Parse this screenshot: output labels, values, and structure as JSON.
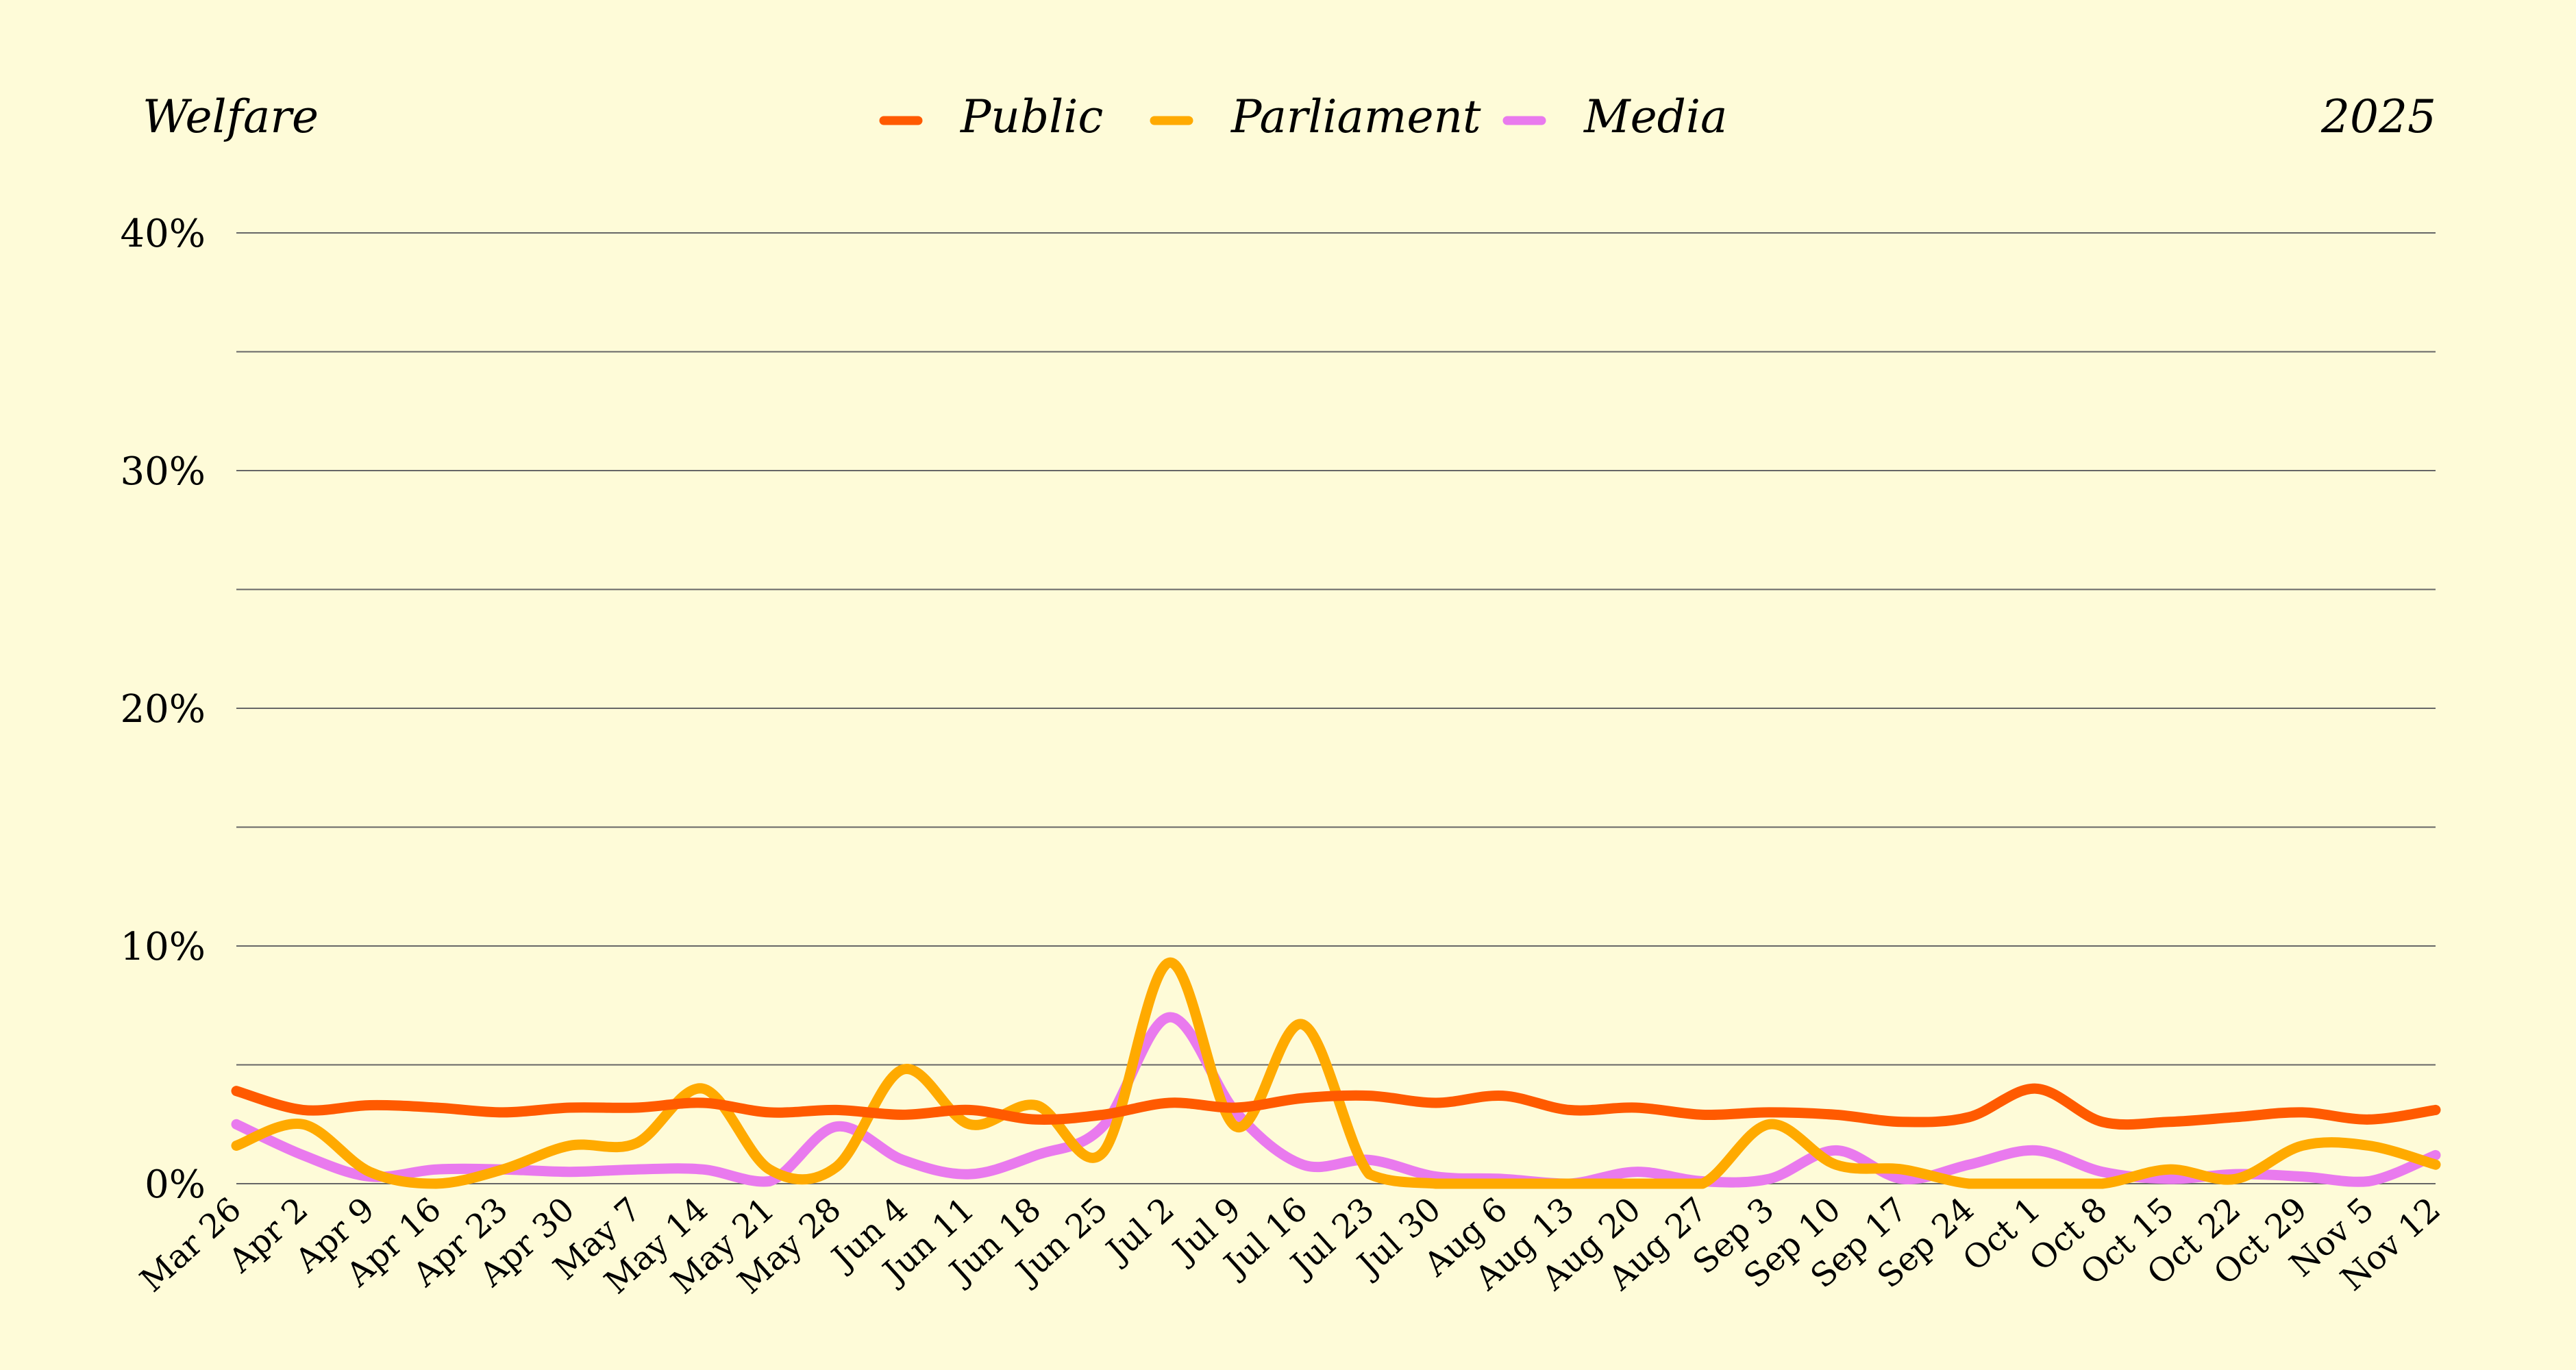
{
  "header": {
    "title": "Welfare",
    "year": "2025"
  },
  "chart_data": {
    "type": "line",
    "title": "Welfare",
    "subtitle": "2025",
    "xlabel": "",
    "ylabel": "",
    "grid": true,
    "legend_position": "top-center",
    "x": [
      "Mar 26",
      "Apr 2",
      "Apr 9",
      "Apr 16",
      "Apr 23",
      "Apr 30",
      "May 7",
      "May 14",
      "May 21",
      "May 28",
      "Jun 4",
      "Jun 11",
      "Jun 18",
      "Jun 25",
      "Jul 2",
      "Jul 9",
      "Jul 16",
      "Jul 23",
      "Jul 30",
      "Aug 6",
      "Aug 13",
      "Aug 20",
      "Aug 27",
      "Sep 3",
      "Sep 10",
      "Sep 17",
      "Sep 24",
      "Oct 1",
      "Oct 8",
      "Oct 15",
      "Oct 22",
      "Oct 29",
      "Nov 5",
      "Nov 12"
    ],
    "ylim": [
      0,
      40
    ],
    "y_ticks": [
      0,
      10,
      20,
      30,
      40
    ],
    "y_tick_labels": [
      "0%",
      "10%",
      "20%",
      "30%",
      "40%"
    ],
    "series": [
      {
        "name": "Public",
        "color": "#FF5A00",
        "values": [
          3.9,
          3.1,
          3.3,
          3.2,
          3.0,
          3.2,
          3.2,
          3.4,
          3.0,
          3.1,
          2.9,
          3.1,
          2.7,
          2.9,
          3.4,
          3.2,
          3.6,
          3.7,
          3.4,
          3.7,
          3.1,
          3.2,
          2.9,
          3.0,
          2.9,
          2.6,
          2.8,
          4.0,
          2.6,
          2.6,
          2.8,
          3.0,
          2.7,
          3.1
        ]
      },
      {
        "name": "Parliament",
        "color": "#FFAA00",
        "values": [
          1.6,
          2.5,
          0.5,
          0.0,
          0.6,
          1.6,
          1.7,
          4.0,
          0.6,
          0.7,
          4.8,
          2.5,
          3.3,
          1.3,
          9.3,
          2.4,
          6.7,
          0.4,
          0.0,
          0.0,
          0.0,
          0.0,
          0.0,
          2.5,
          0.8,
          0.6,
          0.0,
          0.0,
          0.0,
          0.6,
          0.2,
          1.6,
          1.6,
          0.8
        ]
      },
      {
        "name": "Media",
        "color": "#E97AEE",
        "values": [
          2.5,
          1.2,
          0.3,
          0.6,
          0.6,
          0.5,
          0.6,
          0.6,
          0.1,
          2.4,
          1.0,
          0.4,
          1.2,
          2.4,
          7.0,
          3.0,
          0.8,
          1.0,
          0.3,
          0.2,
          0.0,
          0.5,
          0.1,
          0.2,
          1.4,
          0.2,
          0.8,
          1.4,
          0.5,
          0.2,
          0.4,
          0.3,
          0.1,
          1.2
        ]
      }
    ]
  }
}
